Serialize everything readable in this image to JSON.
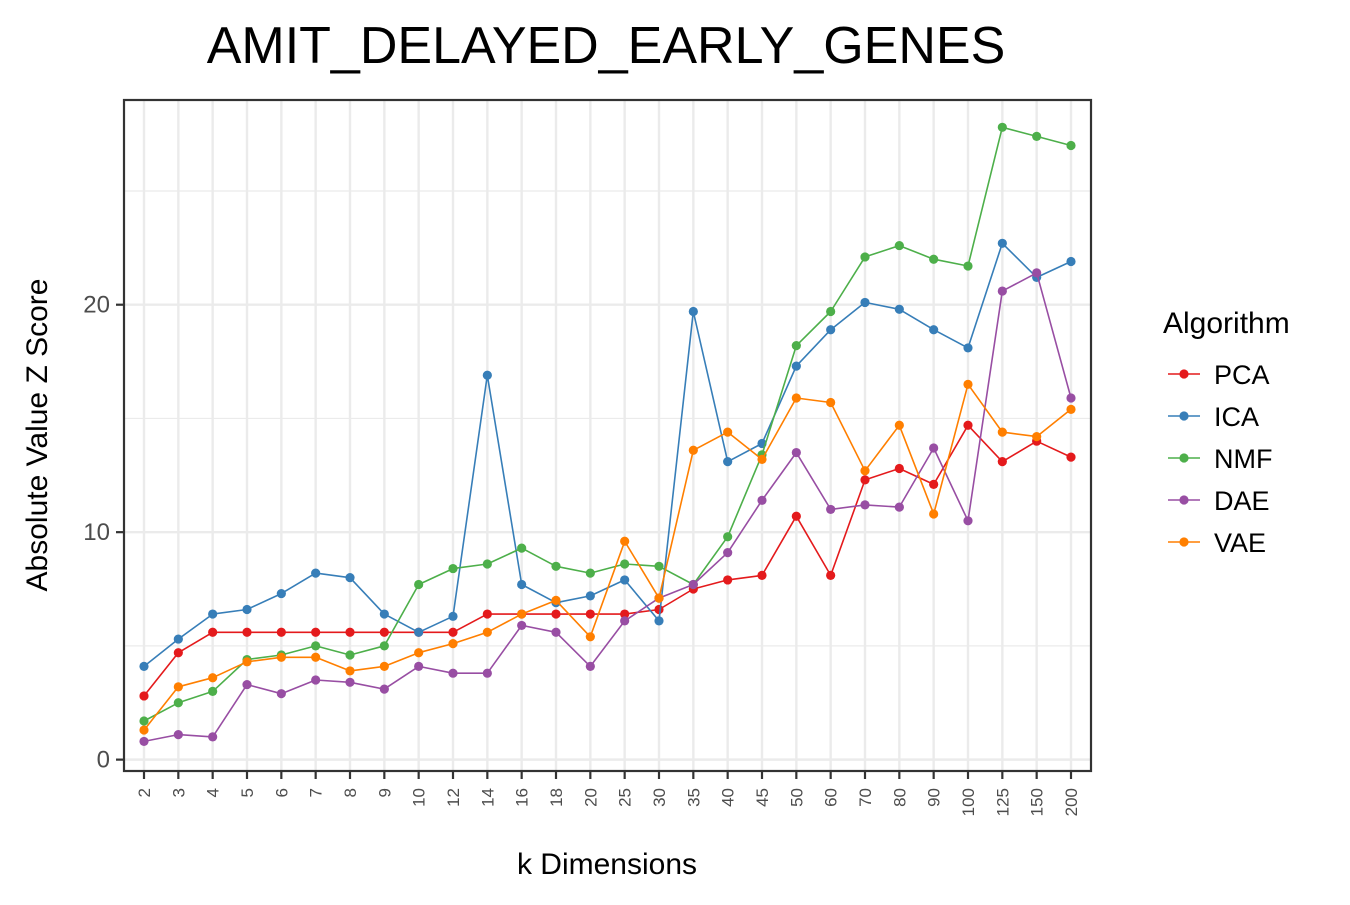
{
  "chart_data": {
    "type": "line",
    "title": "AMIT_DELAYED_EARLY_GENES",
    "xlabel": "k Dimensions",
    "ylabel": "Absolute Value Z Score",
    "categories": [
      "2",
      "3",
      "4",
      "5",
      "6",
      "7",
      "8",
      "9",
      "10",
      "12",
      "14",
      "16",
      "18",
      "20",
      "25",
      "30",
      "35",
      "40",
      "45",
      "50",
      "60",
      "70",
      "80",
      "90",
      "100",
      "125",
      "150",
      "200"
    ],
    "yticks": [
      0,
      10,
      20
    ],
    "ylim": [
      -0.5,
      29
    ],
    "grid": true,
    "legend_title": "Algorithm",
    "legend_position": "right",
    "series": [
      {
        "name": "PCA",
        "color": "#e41a1c",
        "values": [
          2.8,
          4.7,
          5.6,
          5.6,
          5.6,
          5.6,
          5.6,
          5.6,
          5.6,
          5.6,
          6.4,
          6.4,
          6.4,
          6.4,
          6.4,
          6.6,
          7.5,
          7.9,
          8.1,
          10.7,
          8.1,
          12.3,
          12.8,
          12.1,
          14.7,
          13.1,
          14.0,
          13.3
        ]
      },
      {
        "name": "ICA",
        "color": "#377eb8",
        "values": [
          4.1,
          5.3,
          6.4,
          6.6,
          7.3,
          8.2,
          8.0,
          6.4,
          5.6,
          6.3,
          16.9,
          7.7,
          6.9,
          7.2,
          7.9,
          6.1,
          19.7,
          13.1,
          13.9,
          17.3,
          18.9,
          20.1,
          19.8,
          18.9,
          18.1,
          22.7,
          21.2,
          21.9
        ]
      },
      {
        "name": "NMF",
        "color": "#4daf4a",
        "values": [
          1.7,
          2.5,
          3.0,
          4.4,
          4.6,
          5.0,
          4.6,
          5.0,
          7.7,
          8.4,
          8.6,
          9.3,
          8.5,
          8.2,
          8.6,
          8.5,
          7.7,
          9.8,
          13.4,
          18.2,
          19.7,
          22.1,
          22.6,
          22.0,
          21.7,
          27.8,
          27.4,
          27.0
        ]
      },
      {
        "name": "DAE",
        "color": "#984ea3",
        "values": [
          0.8,
          1.1,
          1.0,
          3.3,
          2.9,
          3.5,
          3.4,
          3.1,
          4.1,
          3.8,
          3.8,
          5.9,
          5.6,
          4.1,
          6.1,
          7.1,
          7.7,
          9.1,
          11.4,
          13.5,
          11.0,
          11.2,
          11.1,
          13.7,
          10.5,
          20.6,
          21.4,
          15.9
        ]
      },
      {
        "name": "VAE",
        "color": "#ff7f00",
        "values": [
          1.3,
          3.2,
          3.6,
          4.3,
          4.5,
          4.5,
          3.9,
          4.1,
          4.7,
          5.1,
          5.6,
          6.4,
          7.0,
          5.4,
          9.6,
          7.1,
          13.6,
          14.4,
          13.2,
          15.9,
          15.7,
          12.7,
          14.7,
          10.8,
          16.5,
          14.4,
          14.2,
          15.4
        ]
      }
    ]
  }
}
